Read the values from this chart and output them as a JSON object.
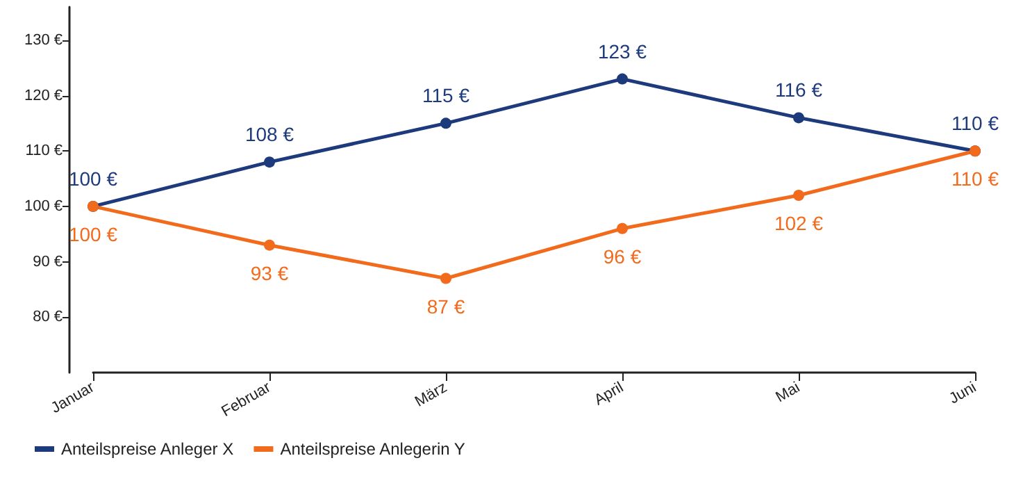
{
  "chart_data": {
    "type": "line",
    "categories": [
      "Januar",
      "Februar",
      "März",
      "April",
      "Mai",
      "Juni"
    ],
    "series": [
      {
        "name": "Anteilspreise Anleger X",
        "color": "#1d3a7c",
        "values": [
          100,
          108,
          115,
          123,
          116,
          110
        ],
        "value_labels": [
          "100 €",
          "108 €",
          "115 €",
          "123 €",
          "116 €",
          "110 €"
        ]
      },
      {
        "name": "Anteilspreise Anlegerin Y",
        "color": "#f26a1b",
        "values": [
          100,
          93,
          87,
          96,
          102,
          110
        ],
        "value_labels": [
          "100 €",
          "93 €",
          "87 €",
          "96 €",
          "102 €",
          "110 €"
        ]
      }
    ],
    "ylim": [
      70,
      136
    ],
    "yticks": [
      {
        "value": 80,
        "label": "80 €"
      },
      {
        "value": 90,
        "label": "90 €"
      },
      {
        "value": 100,
        "label": "100 €"
      },
      {
        "value": 110,
        "label": "110 €"
      },
      {
        "value": 120,
        "label": "120 €"
      },
      {
        "value": 130,
        "label": "130 €"
      }
    ],
    "grid": false,
    "legend": "bottom left",
    "marker": "circle",
    "line_style": "solid"
  }
}
